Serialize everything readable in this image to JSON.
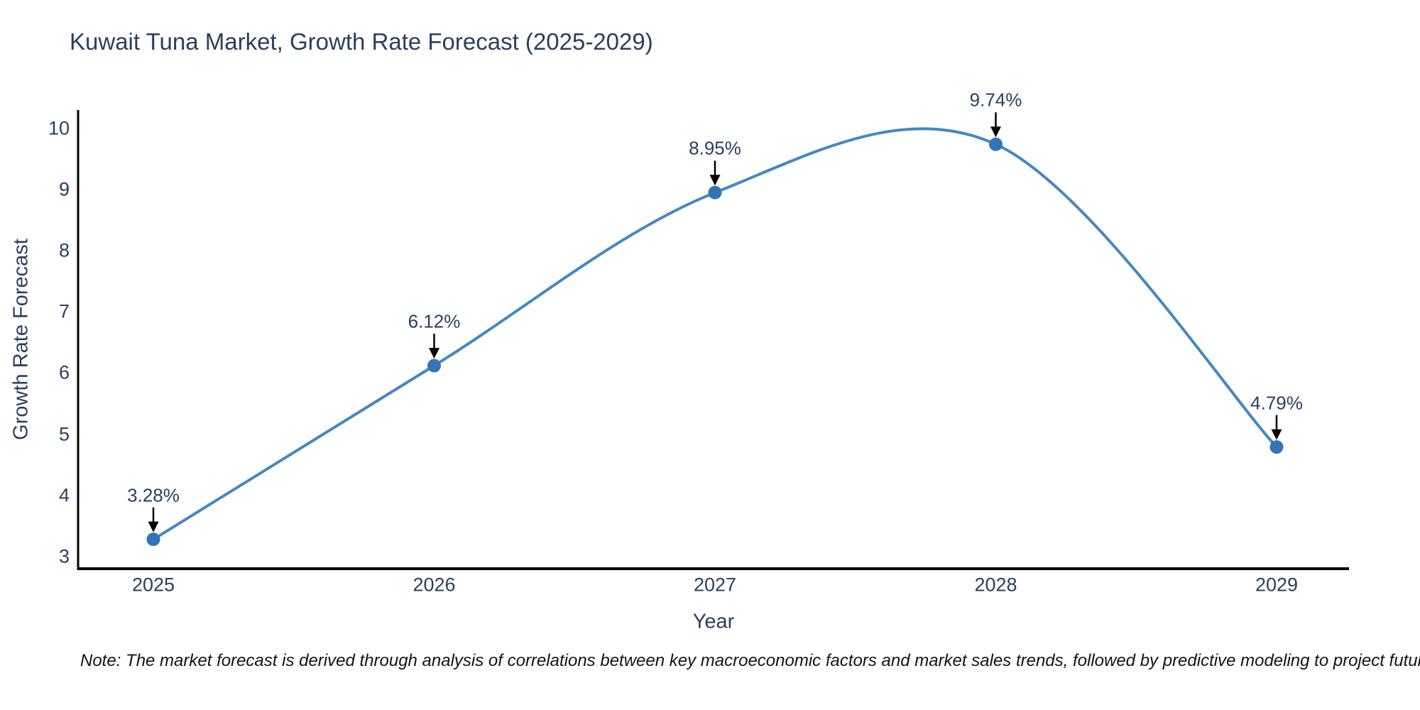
{
  "chart_data": {
    "type": "line",
    "title": "Kuwait Tuna Market, Growth Rate Forecast (2025-2029)",
    "xlabel": "Year",
    "ylabel": "Growth Rate Forecast",
    "categories": [
      "2025",
      "2026",
      "2027",
      "2028",
      "2029"
    ],
    "values": [
      3.28,
      6.12,
      8.95,
      9.74,
      4.79
    ],
    "point_labels": [
      "3.28%",
      "6.12%",
      "8.95%",
      "9.74%",
      "4.79%"
    ],
    "yticks": [
      10,
      9,
      8,
      7,
      6,
      5,
      4,
      3
    ],
    "ylim": [
      2.8,
      10.3
    ],
    "line_shape": "spline",
    "grid": false,
    "legend_position": "none",
    "marker_size": 19,
    "colors": {
      "line": "#4687c1",
      "marker": "#3474b4",
      "axis": "#000000",
      "text": "#2a3f5f",
      "arrow": "#000000",
      "background": "#ffffff"
    }
  },
  "footnote": "Note: The market forecast is derived through analysis of correlations between key macroeconomic factors and market sales trends, followed by predictive modeling to project future sales"
}
